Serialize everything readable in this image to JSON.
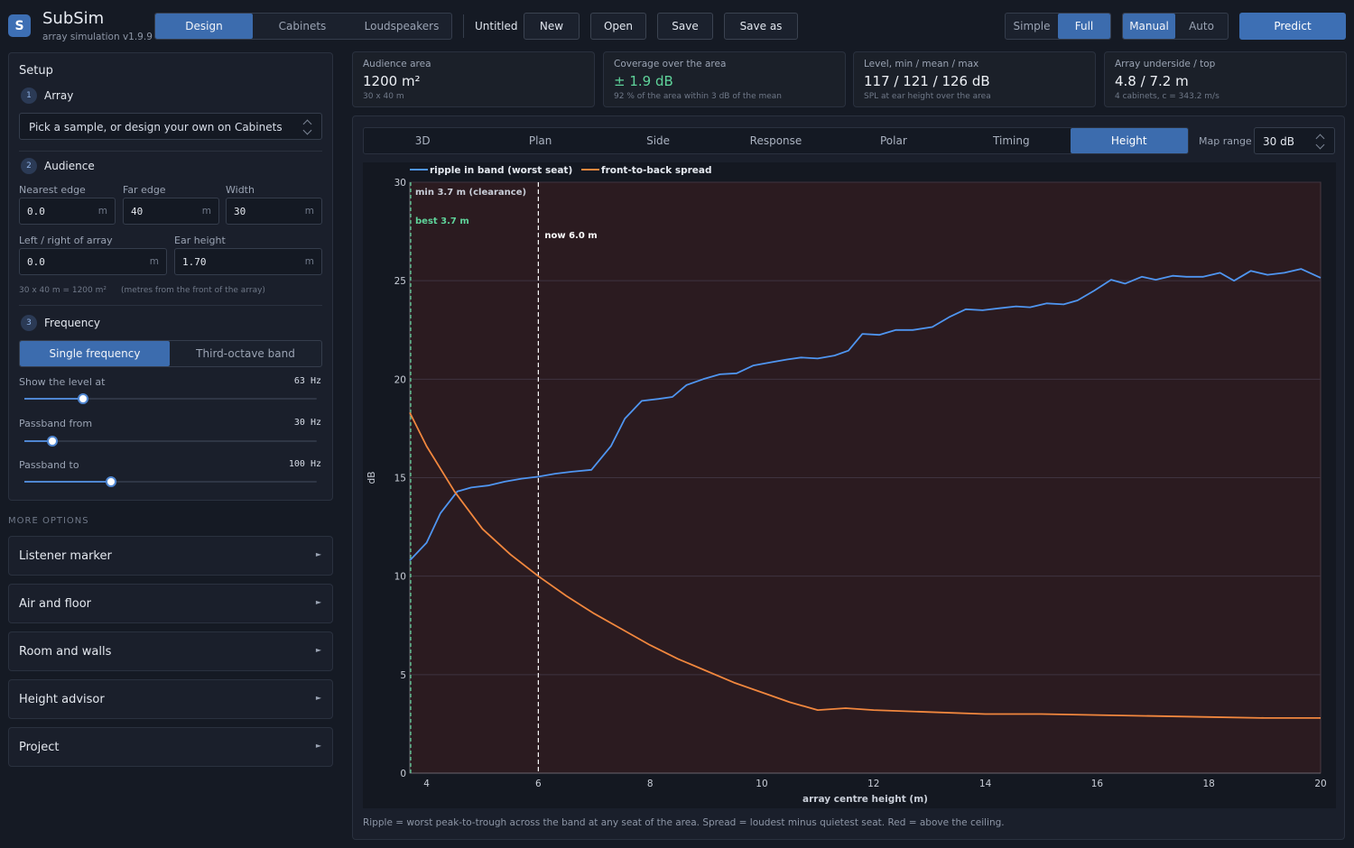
{
  "app": {
    "name": "SubSim",
    "subtitle": "array simulation  v1.9.9",
    "logo_letter": "S"
  },
  "nav_tabs": [
    {
      "label": "Design",
      "active": true
    },
    {
      "label": "Cabinets",
      "active": false
    },
    {
      "label": "Loudspeakers",
      "active": false
    }
  ],
  "file": {
    "name": "Untitled",
    "new": "New",
    "open": "Open",
    "save": "Save",
    "save_as": "Save as"
  },
  "mode_toggle": [
    {
      "label": "Simple",
      "active": false
    },
    {
      "label": "Full",
      "active": true
    }
  ],
  "tuning_toggle": [
    {
      "label": "Manual",
      "active": true
    },
    {
      "label": "Auto",
      "active": false
    }
  ],
  "predict_label": "Predict",
  "setup": {
    "title": "Setup",
    "array": {
      "num": "1",
      "title": "Array",
      "select_value": "Pick a sample, or design your own on Cabinets"
    },
    "audience": {
      "num": "2",
      "title": "Audience",
      "nearest_label": "Nearest edge",
      "nearest_value": "0.0",
      "far_label": "Far edge",
      "far_value": "40",
      "width_label": "Width",
      "width_value": "30",
      "lr_label": "Left / right of array",
      "lr_value": "0.0",
      "ear_label": "Ear height",
      "ear_value": "1.70",
      "unit": "m",
      "summary": "30 x 40 m  =  1200 m²",
      "note": "(metres from the front of the array)"
    },
    "frequency": {
      "num": "3",
      "title": "Frequency",
      "modes": [
        {
          "label": "Single frequency",
          "active": true
        },
        {
          "label": "Third-octave band",
          "active": false
        }
      ],
      "show_level_label": "Show the level at",
      "show_level_value": "63 Hz",
      "show_level_frac": 0.2,
      "pass_from_label": "Passband from",
      "pass_from_value": "30 Hz",
      "pass_from_frac": 0.095,
      "pass_to_label": "Passband to",
      "pass_to_value": "100 Hz",
      "pass_to_frac": 0.295
    }
  },
  "more_options": {
    "title": "MORE OPTIONS",
    "items": [
      "Listener marker",
      "Air and floor",
      "Room and walls",
      "Height advisor",
      "Project"
    ]
  },
  "stats": [
    {
      "title": "Audience area",
      "value": "1200 m²",
      "sub": "30 x 40 m",
      "color": "#eef1f6"
    },
    {
      "title": "Coverage over the area",
      "value": "± 1.9 dB",
      "sub": "92 % of the area within 3 dB of the mean",
      "color": "#5fd39a"
    },
    {
      "title": "Level, min / mean / max",
      "value": "117 / 121 / 126 dB",
      "sub": "SPL at ear height over the area",
      "color": "#eef1f6"
    },
    {
      "title": "Array underside / top",
      "value": "4.8 / 7.2 m",
      "sub": "4 cabinets, c = 343.2 m/s",
      "color": "#eef1f6"
    }
  ],
  "view_tabs": [
    {
      "label": "3D",
      "active": false
    },
    {
      "label": "Plan",
      "active": false
    },
    {
      "label": "Side",
      "active": false
    },
    {
      "label": "Response",
      "active": false
    },
    {
      "label": "Polar",
      "active": false
    },
    {
      "label": "Timing",
      "active": false
    },
    {
      "label": "Height",
      "active": true
    }
  ],
  "map_range": {
    "label": "Map range",
    "value": "30 dB"
  },
  "caption": "Ripple = worst peak-to-trough across the band at any seat of the area. Spread = loudest minus quietest seat. Red = above the ceiling.",
  "chart_data": {
    "type": "line",
    "xlabel": "array centre height (m)",
    "ylabel": "dB",
    "xlim": [
      3.7,
      20
    ],
    "ylim": [
      0,
      30
    ],
    "xticks": [
      4,
      6,
      8,
      10,
      12,
      14,
      16,
      18,
      20
    ],
    "yticks": [
      0,
      5,
      10,
      15,
      20,
      25,
      30
    ],
    "grid": true,
    "legend": "top-left",
    "background_color": "#2b1b20",
    "series": [
      {
        "name": "ripple in band (worst seat)",
        "color": "#4f95f0",
        "x": [
          3.7,
          4.0,
          4.25,
          4.55,
          4.8,
          5.1,
          5.4,
          5.7,
          6.0,
          6.3,
          6.6,
          6.95,
          7.3,
          7.55,
          7.85,
          8.15,
          8.4,
          8.65,
          8.95,
          9.25,
          9.55,
          9.85,
          10.15,
          10.45,
          10.7,
          11.0,
          11.3,
          11.55,
          11.8,
          12.1,
          12.4,
          12.7,
          13.05,
          13.35,
          13.65,
          13.95,
          14.25,
          14.55,
          14.8,
          15.1,
          15.4,
          15.65,
          15.95,
          16.25,
          16.5,
          16.8,
          17.05,
          17.35,
          17.6,
          17.9,
          18.2,
          18.45,
          18.75,
          19.05,
          19.35,
          19.65,
          20.0
        ],
        "y": [
          10.8,
          11.7,
          13.2,
          14.3,
          14.5,
          14.6,
          14.8,
          14.95,
          15.05,
          15.2,
          15.3,
          15.4,
          16.6,
          18.0,
          18.9,
          19.0,
          19.1,
          19.7,
          20.0,
          20.25,
          20.3,
          20.7,
          20.85,
          21.0,
          21.1,
          21.05,
          21.2,
          21.45,
          22.3,
          22.25,
          22.5,
          22.5,
          22.65,
          23.15,
          23.55,
          23.5,
          23.6,
          23.7,
          23.65,
          23.85,
          23.8,
          24.0,
          24.5,
          25.05,
          24.85,
          25.2,
          25.05,
          25.25,
          25.2,
          25.2,
          25.4,
          25.0,
          25.5,
          25.3,
          25.4,
          25.6,
          25.15
        ]
      },
      {
        "name": "front-to-back spread",
        "color": "#f1873e",
        "x": [
          3.7,
          4.0,
          4.5,
          5.0,
          5.5,
          6.0,
          6.5,
          7.0,
          7.5,
          8.0,
          8.5,
          9.0,
          9.5,
          10.0,
          10.5,
          11.0,
          11.5,
          12.0,
          13.0,
          14.0,
          15.0,
          16.0,
          17.0,
          18.0,
          19.0,
          20.0
        ],
        "y": [
          18.3,
          16.6,
          14.3,
          12.4,
          11.1,
          10.0,
          9.0,
          8.1,
          7.3,
          6.5,
          5.8,
          5.2,
          4.6,
          4.1,
          3.6,
          3.2,
          3.3,
          3.2,
          3.1,
          3.0,
          3.0,
          2.95,
          2.9,
          2.85,
          2.8,
          2.8
        ]
      }
    ],
    "annotations": [
      {
        "label": "min 3.7 m (clearance)",
        "x": 3.7,
        "color": "#c9ced8"
      },
      {
        "label": "best 3.7 m",
        "x": 3.7,
        "color": "#5fd39a"
      },
      {
        "label": "now 6.0 m",
        "x": 6.0,
        "color": "#ffffff"
      }
    ]
  }
}
